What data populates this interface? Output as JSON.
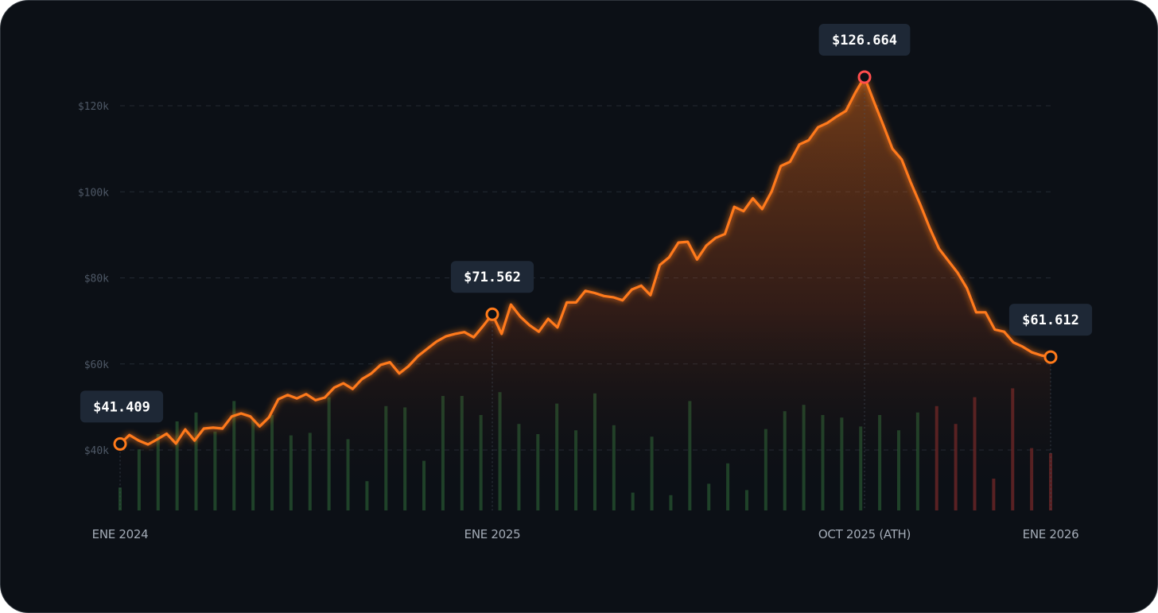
{
  "colors": {
    "background": "#0c1016",
    "line": "#ff7a1a",
    "ath_marker": "#ff4d4d",
    "volume_up": "#2f6b3a",
    "volume_down": "#7a2a2a",
    "callout_bg": "#1e2836",
    "grid": "#232a33"
  },
  "chart_data": {
    "type": "line",
    "title": "",
    "xlabel": "",
    "ylabel": "",
    "ylim": [
      28000,
      137000
    ],
    "yticks": [
      {
        "value": 40000,
        "label": "$40k"
      },
      {
        "value": 60000,
        "label": "$60k"
      },
      {
        "value": 80000,
        "label": "$80k"
      },
      {
        "value": 100000,
        "label": "$100k"
      },
      {
        "value": 120000,
        "label": "$120k"
      }
    ],
    "xticks": [
      {
        "index": 0,
        "label": "ENE 2024"
      },
      {
        "index": 40,
        "label": "ENE 2025"
      },
      {
        "index": 80,
        "label": "OCT 2025 (ATH)"
      },
      {
        "index": 100,
        "label": "ENE 2026"
      }
    ],
    "grid": true,
    "series": [
      {
        "values": [
          41409,
          43500,
          42200,
          41300,
          42500,
          43800,
          41500,
          44800,
          42200,
          45000,
          45200,
          45000,
          47800,
          48500,
          47800,
          45500,
          47600,
          51800,
          52800,
          52000,
          53000,
          51600,
          52200,
          54500,
          55500,
          54200,
          56500,
          57800,
          59800,
          60400,
          57800,
          59500,
          61800,
          63500,
          65200,
          66400,
          67000,
          67400,
          66200,
          68800,
          71562,
          67000,
          73800,
          71000,
          69000,
          67500,
          70500,
          68500,
          74300,
          74300,
          77000,
          76500,
          75800,
          75500,
          74800,
          77300,
          78200,
          76000,
          83000,
          84800,
          88200,
          88400,
          84300,
          87500,
          89300,
          90200,
          96500,
          95500,
          98500,
          96000,
          100000,
          106000,
          107000,
          111000,
          112000,
          115000,
          116000,
          117500,
          118800,
          123000,
          126664,
          121000,
          115600,
          110000,
          107500,
          102000,
          97000,
          91600,
          86800,
          84000,
          81200,
          77600,
          72000,
          72000,
          68000,
          67500,
          65000,
          64000,
          62700,
          62000,
          61612
        ]
      }
    ],
    "volume": {
      "values": [
        18,
        48,
        60,
        70,
        77,
        62,
        86,
        72,
        75,
        59,
        61,
        89,
        56,
        23,
        82,
        81,
        39,
        90,
        90,
        75,
        93,
        68,
        60,
        84,
        63,
        92,
        67,
        14,
        58,
        12,
        86,
        21,
        37,
        16,
        64,
        78,
        83,
        75,
        73,
        66,
        75,
        63,
        77,
        82,
        68,
        89,
        25,
        96,
        49,
        45
      ],
      "direction": [
        "up",
        "up",
        "up",
        "up",
        "up",
        "up",
        "up",
        "up",
        "up",
        "up",
        "up",
        "up",
        "up",
        "up",
        "up",
        "up",
        "up",
        "up",
        "up",
        "up",
        "up",
        "up",
        "up",
        "up",
        "up",
        "up",
        "up",
        "up",
        "up",
        "up",
        "up",
        "up",
        "up",
        "up",
        "up",
        "up",
        "up",
        "up",
        "up",
        "up",
        "up",
        "up",
        "up",
        "down",
        "down",
        "down",
        "down",
        "down",
        "down",
        "down"
      ]
    },
    "annotations": [
      {
        "index": 0,
        "label": "$41.409",
        "marker": "orange"
      },
      {
        "index": 40,
        "label": "$71.562",
        "marker": "orange"
      },
      {
        "index": 80,
        "label": "$126.664",
        "marker": "red"
      },
      {
        "index": 100,
        "label": "$61.612",
        "marker": "orange"
      }
    ]
  }
}
